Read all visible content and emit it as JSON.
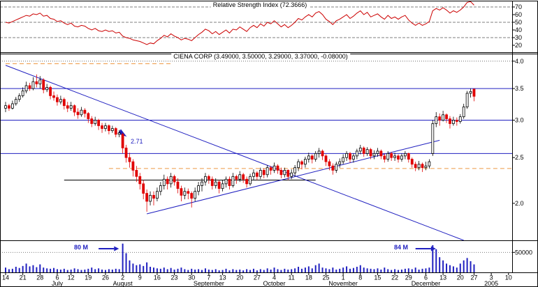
{
  "chart_data": [
    {
      "type": "line",
      "panel": "rsi",
      "title": "Relative Strength Index (72.3666)",
      "yticks": [
        70,
        60,
        50,
        40,
        30,
        20
      ],
      "gridlines": [
        70,
        50,
        30
      ],
      "series": [
        {
          "name": "RSI",
          "color": "#cc0000",
          "values": [
            50,
            49,
            51,
            53,
            55,
            57,
            59,
            58,
            61,
            60,
            62,
            58,
            59,
            55,
            54,
            51,
            52,
            49,
            47,
            49,
            45,
            44,
            46,
            45,
            42,
            40,
            42,
            39,
            38,
            40,
            38,
            39,
            36,
            37,
            32,
            30,
            29,
            27,
            26,
            25,
            23,
            21,
            23,
            22,
            26,
            29,
            33,
            31,
            35,
            32,
            30,
            27,
            29,
            28,
            26,
            30,
            34,
            37,
            41,
            39,
            35,
            38,
            34,
            37,
            40,
            36,
            41,
            40,
            44,
            41,
            38,
            43,
            46,
            43,
            48,
            45,
            50,
            48,
            52,
            48,
            44,
            47,
            43,
            46,
            50,
            55,
            53,
            57,
            60,
            57,
            62,
            64,
            60,
            54,
            51,
            47,
            52,
            54,
            57,
            60,
            55,
            58,
            62,
            65,
            60,
            63,
            57,
            59,
            61,
            57,
            54,
            59,
            55,
            57,
            54,
            57,
            59,
            53,
            49,
            46,
            49,
            46,
            48,
            51,
            65,
            68,
            66,
            69,
            66,
            62,
            65,
            63,
            66,
            70,
            76,
            77,
            72.37
          ]
        }
      ]
    },
    {
      "type": "candlestick",
      "panel": "price",
      "title": "CIENA CORP (3.49000, 3.50000, 3.29000, 3.37000, -0.08000)",
      "scale": "log",
      "yticks": [
        4.0,
        3.5,
        3.0,
        2.5,
        2.0
      ],
      "ohlc": [
        [
          3.18,
          3.28,
          3.12,
          3.22
        ],
        [
          3.22,
          3.25,
          3.14,
          3.18
        ],
        [
          3.18,
          3.3,
          3.16,
          3.25
        ],
        [
          3.25,
          3.36,
          3.22,
          3.32
        ],
        [
          3.32,
          3.42,
          3.28,
          3.38
        ],
        [
          3.38,
          3.52,
          3.35,
          3.46
        ],
        [
          3.46,
          3.62,
          3.42,
          3.55
        ],
        [
          3.55,
          3.6,
          3.46,
          3.5
        ],
        [
          3.5,
          3.7,
          3.47,
          3.62
        ],
        [
          3.62,
          3.75,
          3.52,
          3.58
        ],
        [
          3.58,
          3.72,
          3.5,
          3.65
        ],
        [
          3.65,
          3.68,
          3.42,
          3.48
        ],
        [
          3.48,
          3.58,
          3.44,
          3.52
        ],
        [
          3.52,
          3.55,
          3.32,
          3.38
        ],
        [
          3.38,
          3.45,
          3.3,
          3.35
        ],
        [
          3.35,
          3.4,
          3.22,
          3.28
        ],
        [
          3.28,
          3.38,
          3.24,
          3.32
        ],
        [
          3.32,
          3.35,
          3.16,
          3.22
        ],
        [
          3.22,
          3.28,
          3.12,
          3.18
        ],
        [
          3.18,
          3.28,
          3.14,
          3.22
        ],
        [
          3.22,
          3.24,
          3.06,
          3.12
        ],
        [
          3.12,
          3.18,
          3.02,
          3.08
        ],
        [
          3.08,
          3.2,
          3.05,
          3.15
        ],
        [
          3.15,
          3.18,
          3.04,
          3.1
        ],
        [
          3.1,
          3.12,
          2.96,
          3.02
        ],
        [
          3.02,
          3.06,
          2.9,
          2.95
        ],
        [
          2.95,
          3.05,
          2.92,
          3.0
        ],
        [
          3.0,
          3.02,
          2.86,
          2.92
        ],
        [
          2.92,
          2.96,
          2.82,
          2.88
        ],
        [
          2.88,
          2.96,
          2.84,
          2.92
        ],
        [
          2.92,
          2.94,
          2.8,
          2.85
        ],
        [
          2.85,
          2.92,
          2.82,
          2.88
        ],
        [
          2.88,
          2.9,
          2.76,
          2.8
        ],
        [
          2.8,
          2.86,
          2.76,
          2.82
        ],
        [
          2.8,
          2.82,
          2.55,
          2.62
        ],
        [
          2.62,
          2.66,
          2.44,
          2.5
        ],
        [
          2.5,
          2.56,
          2.38,
          2.45
        ],
        [
          2.45,
          2.48,
          2.28,
          2.35
        ],
        [
          2.35,
          2.4,
          2.22,
          2.28
        ],
        [
          2.28,
          2.32,
          2.14,
          2.2
        ],
        [
          2.2,
          2.24,
          2.04,
          2.1
        ],
        [
          2.1,
          2.14,
          1.92,
          2.02
        ],
        [
          2.02,
          2.12,
          1.98,
          2.08
        ],
        [
          2.08,
          2.12,
          1.98,
          2.05
        ],
        [
          2.05,
          2.16,
          2.02,
          2.12
        ],
        [
          2.12,
          2.22,
          2.08,
          2.18
        ],
        [
          2.18,
          2.3,
          2.14,
          2.25
        ],
        [
          2.25,
          2.28,
          2.14,
          2.2
        ],
        [
          2.2,
          2.32,
          2.16,
          2.28
        ],
        [
          2.28,
          2.3,
          2.18,
          2.22
        ],
        [
          2.22,
          2.26,
          2.1,
          2.15
        ],
        [
          2.15,
          2.18,
          2.02,
          2.08
        ],
        [
          2.08,
          2.16,
          2.04,
          2.12
        ],
        [
          2.12,
          2.15,
          2.04,
          2.1
        ],
        [
          2.1,
          2.12,
          1.96,
          2.05
        ],
        [
          2.05,
          2.16,
          2.02,
          2.12
        ],
        [
          2.12,
          2.22,
          2.08,
          2.18
        ],
        [
          2.18,
          2.26,
          2.12,
          2.22
        ],
        [
          2.22,
          2.32,
          2.18,
          2.28
        ],
        [
          2.28,
          2.3,
          2.2,
          2.25
        ],
        [
          2.25,
          2.28,
          2.14,
          2.18
        ],
        [
          2.18,
          2.26,
          2.15,
          2.22
        ],
        [
          2.22,
          2.24,
          2.1,
          2.15
        ],
        [
          2.15,
          2.24,
          2.12,
          2.2
        ],
        [
          2.2,
          2.28,
          2.16,
          2.25
        ],
        [
          2.25,
          2.28,
          2.14,
          2.18
        ],
        [
          2.18,
          2.32,
          2.16,
          2.28
        ],
        [
          2.28,
          2.3,
          2.2,
          2.25
        ],
        [
          2.25,
          2.34,
          2.22,
          2.3
        ],
        [
          2.3,
          2.32,
          2.21,
          2.25
        ],
        [
          2.25,
          2.28,
          2.16,
          2.2
        ],
        [
          2.2,
          2.31,
          2.18,
          2.28
        ],
        [
          2.28,
          2.36,
          2.24,
          2.32
        ],
        [
          2.32,
          2.34,
          2.24,
          2.28
        ],
        [
          2.28,
          2.38,
          2.25,
          2.35
        ],
        [
          2.35,
          2.37,
          2.26,
          2.3
        ],
        [
          2.3,
          2.41,
          2.27,
          2.38
        ],
        [
          2.38,
          2.4,
          2.3,
          2.35
        ],
        [
          2.35,
          2.44,
          2.32,
          2.4
        ],
        [
          2.4,
          2.42,
          2.31,
          2.35
        ],
        [
          2.35,
          2.38,
          2.26,
          2.3
        ],
        [
          2.3,
          2.38,
          2.27,
          2.35
        ],
        [
          2.35,
          2.36,
          2.24,
          2.28
        ],
        [
          2.28,
          2.36,
          2.25,
          2.32
        ],
        [
          2.32,
          2.41,
          2.28,
          2.38
        ],
        [
          2.38,
          2.48,
          2.34,
          2.45
        ],
        [
          2.45,
          2.47,
          2.36,
          2.42
        ],
        [
          2.42,
          2.51,
          2.38,
          2.48
        ],
        [
          2.48,
          2.56,
          2.44,
          2.52
        ],
        [
          2.52,
          2.54,
          2.43,
          2.48
        ],
        [
          2.48,
          2.58,
          2.45,
          2.55
        ],
        [
          2.55,
          2.62,
          2.5,
          2.58
        ],
        [
          2.58,
          2.6,
          2.47,
          2.52
        ],
        [
          2.52,
          2.54,
          2.4,
          2.45
        ],
        [
          2.45,
          2.48,
          2.35,
          2.4
        ],
        [
          2.4,
          2.43,
          2.3,
          2.35
        ],
        [
          2.35,
          2.45,
          2.32,
          2.42
        ],
        [
          2.42,
          2.49,
          2.38,
          2.45
        ],
        [
          2.45,
          2.54,
          2.42,
          2.5
        ],
        [
          2.5,
          2.58,
          2.46,
          2.55
        ],
        [
          2.55,
          2.57,
          2.44,
          2.48
        ],
        [
          2.48,
          2.55,
          2.44,
          2.52
        ],
        [
          2.52,
          2.61,
          2.48,
          2.58
        ],
        [
          2.58,
          2.66,
          2.54,
          2.62
        ],
        [
          2.62,
          2.64,
          2.51,
          2.55
        ],
        [
          2.55,
          2.63,
          2.52,
          2.6
        ],
        [
          2.6,
          2.62,
          2.48,
          2.52
        ],
        [
          2.52,
          2.59,
          2.48,
          2.55
        ],
        [
          2.55,
          2.62,
          2.51,
          2.58
        ],
        [
          2.58,
          2.6,
          2.48,
          2.52
        ],
        [
          2.52,
          2.55,
          2.44,
          2.48
        ],
        [
          2.48,
          2.58,
          2.45,
          2.55
        ],
        [
          2.55,
          2.57,
          2.46,
          2.5
        ],
        [
          2.5,
          2.56,
          2.46,
          2.52
        ],
        [
          2.52,
          2.54,
          2.44,
          2.48
        ],
        [
          2.48,
          2.55,
          2.45,
          2.52
        ],
        [
          2.52,
          2.58,
          2.48,
          2.55
        ],
        [
          2.55,
          2.56,
          2.44,
          2.48
        ],
        [
          2.48,
          2.5,
          2.38,
          2.42
        ],
        [
          2.42,
          2.45,
          2.34,
          2.38
        ],
        [
          2.38,
          2.46,
          2.35,
          2.42
        ],
        [
          2.42,
          2.44,
          2.33,
          2.38
        ],
        [
          2.38,
          2.45,
          2.35,
          2.4
        ],
        [
          2.4,
          2.48,
          2.37,
          2.45
        ],
        [
          2.55,
          3.0,
          2.52,
          2.95
        ],
        [
          2.95,
          3.12,
          2.9,
          3.05
        ],
        [
          3.05,
          3.1,
          2.92,
          3.0
        ],
        [
          3.0,
          3.14,
          2.98,
          3.08
        ],
        [
          3.08,
          3.1,
          2.96,
          3.02
        ],
        [
          3.02,
          3.06,
          2.88,
          2.95
        ],
        [
          2.95,
          3.05,
          2.92,
          3.0
        ],
        [
          3.0,
          3.04,
          2.92,
          2.98
        ],
        [
          2.98,
          3.09,
          2.95,
          3.05
        ],
        [
          3.05,
          3.25,
          3.02,
          3.2
        ],
        [
          3.2,
          3.46,
          3.17,
          3.42
        ],
        [
          3.42,
          3.5,
          3.35,
          3.45
        ],
        [
          3.49,
          3.5,
          3.29,
          3.37
        ]
      ],
      "overlays": {
        "gridlines_dotted": [
          4.0
        ],
        "hlines": [
          {
            "price": 3.5,
            "color": "#2020c0"
          },
          {
            "price": 3.0,
            "color": "#2020c0"
          },
          {
            "price": 2.55,
            "color": "#2020c0"
          },
          {
            "price": 2.24,
            "color": "#000000",
            "from_day": 17,
            "to_day": 90
          },
          {
            "price": 2.37,
            "color": "#ee9944",
            "dash": "6,4",
            "from_day": 30,
            "to_day": 147
          },
          {
            "price": 3.95,
            "color": "#ee9944",
            "dash": "6,4",
            "from_day": 0,
            "to_day": 48
          }
        ],
        "trendlines": [
          {
            "d1": 0,
            "p1": 3.92,
            "d2": 133,
            "p2": 1.67,
            "color": "#2020c0"
          },
          {
            "d1": 41,
            "p1": 1.9,
            "d2": 126,
            "p2": 2.72,
            "color": "#2020c0"
          }
        ],
        "texts": [
          {
            "text": "2.71",
            "day": 36,
            "price": 2.64,
            "color": "#2020c0"
          }
        ],
        "arrows": [
          {
            "day": 33,
            "price": 2.84,
            "angle": 35,
            "color": "#2020c0"
          }
        ]
      }
    },
    {
      "type": "bar",
      "panel": "volume",
      "name": "Volume",
      "color": "#2020c0",
      "yticks": [
        {
          "value": 50000,
          "label": "50000"
        }
      ],
      "values": [
        12000,
        8000,
        9000,
        14000,
        11000,
        16000,
        22000,
        15000,
        18000,
        13000,
        20000,
        12000,
        10000,
        9000,
        11000,
        8000,
        7000,
        9000,
        6000,
        7000,
        10000,
        8000,
        6000,
        7000,
        9000,
        12000,
        8000,
        10000,
        7000,
        6000,
        8000,
        7000,
        9000,
        8000,
        72000,
        48000,
        30000,
        22000,
        18000,
        20000,
        16000,
        25000,
        14000,
        12000,
        10000,
        9000,
        12000,
        8000,
        11000,
        7000,
        9000,
        12000,
        8000,
        6000,
        9000,
        7000,
        8000,
        6000,
        10000,
        7000,
        6000,
        8000,
        5000,
        6000,
        9000,
        5000,
        8000,
        6000,
        7000,
        5000,
        8000,
        6000,
        9000,
        5000,
        8000,
        6000,
        10000,
        7000,
        12000,
        8000,
        6000,
        9000,
        7000,
        8000,
        10000,
        14000,
        9000,
        12000,
        15000,
        10000,
        18000,
        22000,
        12000,
        10000,
        8000,
        12000,
        7000,
        9000,
        12000,
        15000,
        9000,
        11000,
        14000,
        18000,
        12000,
        10000,
        9000,
        8000,
        10000,
        7000,
        12000,
        8000,
        6000,
        8000,
        6000,
        7000,
        9000,
        10000,
        8000,
        12000,
        7000,
        9000,
        10000,
        12000,
        68000,
        58000,
        38000,
        30000,
        22000,
        18000,
        15000,
        12000,
        22000,
        30000,
        36000,
        28000,
        20000
      ],
      "annotations": [
        {
          "text": "80 M",
          "arrow_from_day": 27,
          "arrow_to_day": 31.5,
          "y": 357,
          "color": "#2020c0"
        },
        {
          "text": "84 M",
          "arrow_from_day": 119,
          "arrow_to_day": 123.5,
          "y": 357,
          "color": "#2020c0"
        }
      ]
    }
  ],
  "xaxis": {
    "tick_days": [
      0,
      5,
      10,
      15,
      19,
      24,
      29,
      34,
      39,
      44,
      49,
      54,
      59,
      63,
      68,
      73,
      78,
      83,
      88,
      93,
      98,
      103,
      108,
      113,
      117,
      122,
      127,
      132,
      136,
      141,
      146
    ],
    "tick_labels": [
      "14",
      "21",
      "28",
      "6",
      "12",
      "19",
      "26",
      "2",
      "9",
      "16",
      "23",
      "30",
      "7",
      "13",
      "20",
      "27",
      "4",
      "11",
      "18",
      "25",
      "1",
      "8",
      "15",
      "22",
      "29",
      "6",
      "13",
      "20",
      "27",
      "3",
      "10"
    ],
    "months": [
      {
        "label": "July",
        "day": 15
      },
      {
        "label": "August",
        "day": 34
      },
      {
        "label": "September",
        "day": 59
      },
      {
        "label": "October",
        "day": 78
      },
      {
        "label": "November",
        "day": 98
      },
      {
        "label": "December",
        "day": 122
      },
      {
        "label": "2005",
        "day": 141
      }
    ]
  }
}
